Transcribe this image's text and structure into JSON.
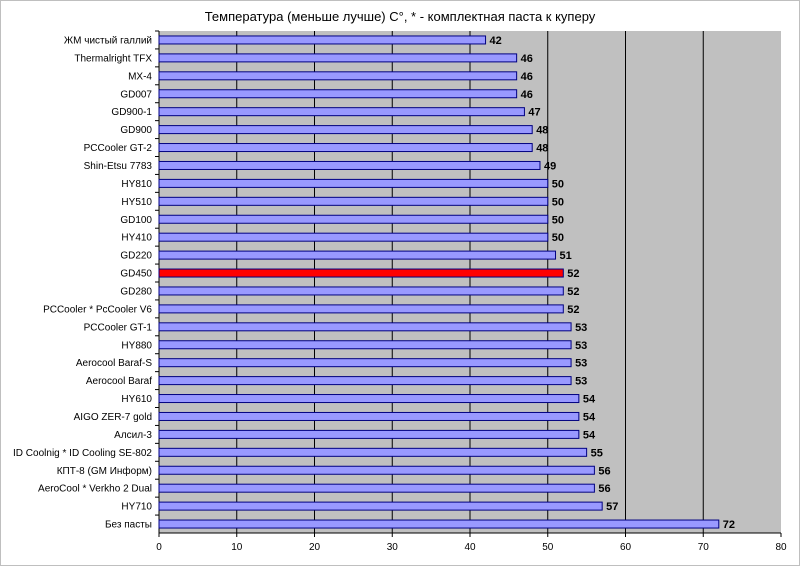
{
  "colors": {
    "plot_bg": "#c0c0c0",
    "bar_fill": "#9999ff",
    "bar_highlight": "#ff0000",
    "bar_stroke": "#000080",
    "gridline": "#000000"
  },
  "chart_data": {
    "type": "bar",
    "orientation": "horizontal",
    "title": "Температура (меньше лучше) C°, * - комплектная паста к куперу",
    "xlabel": "",
    "ylabel": "",
    "xlim": [
      0,
      80
    ],
    "xticks": [
      0,
      10,
      20,
      30,
      40,
      50,
      60,
      70,
      80
    ],
    "grid": "vertical",
    "legend": "none",
    "highlight_category": "GD450",
    "categories": [
      "ЖМ чистый галлий",
      "Thermalright TFX",
      "MX-4",
      "GD007",
      "GD900-1",
      "GD900",
      "PCCooler GT-2",
      "Shin-Etsu 7783",
      "HY810",
      "HY510",
      "GD100",
      "HY410",
      "GD220",
      "GD450",
      "GD280",
      "PCCooler * PcCooler V6",
      "PCCooler GT-1",
      "HY880",
      "Aerocool Baraf-S",
      "Aerocool Baraf",
      "HY610",
      "AIGO ZER-7 gold",
      "Алсил-3",
      "ID Coolnig * ID Cooling SE-802",
      "КПТ-8 (GM Информ)",
      "AeroCool * Verkho 2 Dual",
      "HY710",
      "Без пасты"
    ],
    "values": [
      42,
      46,
      46,
      46,
      47,
      48,
      48,
      49,
      50,
      50,
      50,
      50,
      51,
      52,
      52,
      52,
      53,
      53,
      53,
      53,
      54,
      54,
      54,
      55,
      56,
      56,
      57,
      72
    ]
  }
}
